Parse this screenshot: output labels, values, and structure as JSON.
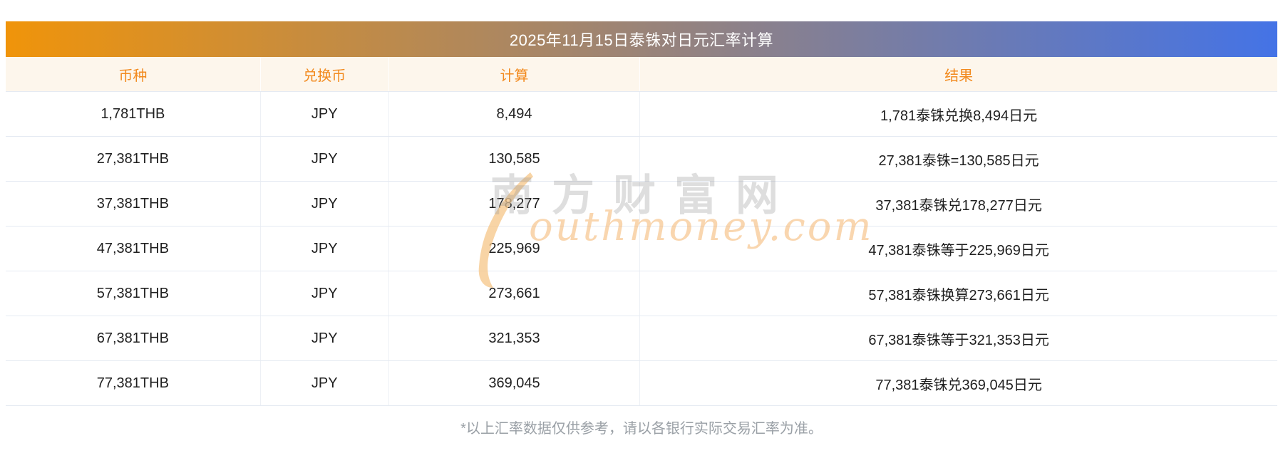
{
  "page": {
    "title": "2025年11月15日泰铢对日元汇率计算",
    "footer_note": "*以上汇率数据仅供参考，请以各银行实际交易汇率为准。"
  },
  "colors": {
    "gradient_left": "#F0940A",
    "gradient_right": "#4473E6",
    "header_bg": "#FDF6EC",
    "header_text": "#F28A1E",
    "body_text": "#1F1F1F",
    "row_border": "#E5EAF2",
    "footer_text": "#9AA0A6",
    "watermark_gray": "rgba(145,145,145,0.30)",
    "watermark_orange": "rgba(243,173,96,0.50)"
  },
  "table": {
    "columns": [
      "币种",
      "兑换币",
      "计算",
      "结果"
    ],
    "rows": [
      {
        "currency": "1,781THB",
        "target": "JPY",
        "calc": "8,494",
        "result": "1,781泰铢兑换8,494日元"
      },
      {
        "currency": "27,381THB",
        "target": "JPY",
        "calc": "130,585",
        "result": "27,381泰铢=130,585日元"
      },
      {
        "currency": "37,381THB",
        "target": "JPY",
        "calc": "178,277",
        "result": "37,381泰铢兑178,277日元"
      },
      {
        "currency": "47,381THB",
        "target": "JPY",
        "calc": "225,969",
        "result": "47,381泰铢等于225,969日元"
      },
      {
        "currency": "57,381THB",
        "target": "JPY",
        "calc": "273,661",
        "result": "57,381泰铢换算273,661日元"
      },
      {
        "currency": "67,381THB",
        "target": "JPY",
        "calc": "321,353",
        "result": "67,381泰铢等于321,353日元"
      },
      {
        "currency": "77,381THB",
        "target": "JPY",
        "calc": "369,045",
        "result": "77,381泰铢兑369,045日元"
      }
    ]
  },
  "watermark": {
    "cn": "南方财富网",
    "en": "outhmoney.com"
  }
}
